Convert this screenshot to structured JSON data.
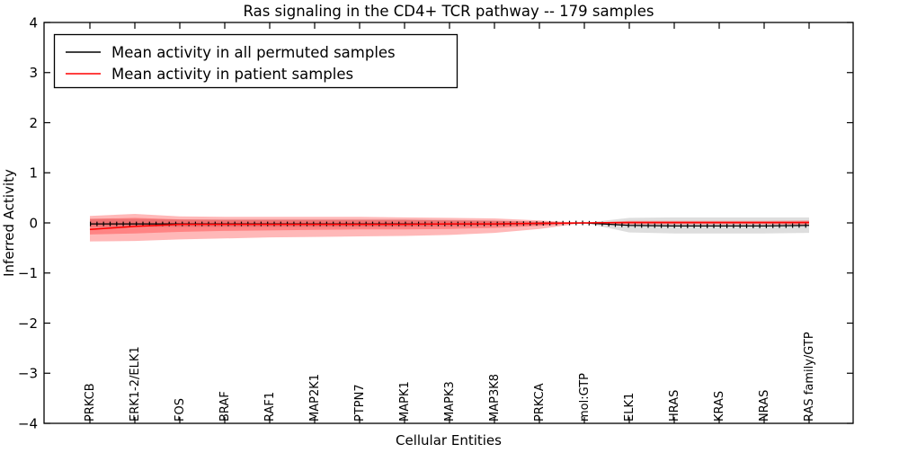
{
  "chart_data": {
    "type": "line",
    "title": "Ras signaling in the CD4+ TCR pathway -- 179 samples",
    "xlabel": "Cellular Entities",
    "ylabel": "Inferred Activity",
    "ylim": [
      -4,
      4
    ],
    "yticks": [
      4,
      3,
      2,
      1,
      0,
      -1,
      -2,
      -3,
      -4
    ],
    "grid": false,
    "legend_position": "upper left",
    "categories": [
      "PRKCB",
      "ERK1-2/ELK1",
      "FOS",
      "BRAF",
      "RAF1",
      "MAP2K1",
      "PTPN7",
      "MAPK1",
      "MAPK3",
      "MAP3K8",
      "PRKCA",
      "mol:GTP",
      "ELK1",
      "HRAS",
      "KRAS",
      "NRAS",
      "RAS family/GTP"
    ],
    "series": [
      {
        "name": "Mean activity in all permuted samples",
        "color": "#000000",
        "line_width": 1.3,
        "tick_markers": true,
        "values": [
          -0.02,
          -0.02,
          -0.02,
          -0.02,
          -0.02,
          -0.02,
          -0.02,
          -0.02,
          -0.02,
          -0.02,
          -0.01,
          0.0,
          -0.05,
          -0.06,
          -0.06,
          -0.06,
          -0.05
        ]
      },
      {
        "name": "Mean activity in patient samples",
        "color": "#ff0000",
        "line_width": 1.5,
        "tick_markers": false,
        "values": [
          -0.13,
          -0.07,
          -0.03,
          -0.03,
          -0.03,
          -0.03,
          -0.03,
          -0.03,
          -0.02,
          -0.02,
          -0.01,
          0.0,
          0.01,
          0.01,
          0.01,
          0.01,
          0.01
        ]
      }
    ],
    "bands": [
      {
        "name": "permuted-samples-spread",
        "color": "rgba(0,0,0,0.13)",
        "upper": [
          0.08,
          0.08,
          0.07,
          0.07,
          0.07,
          0.07,
          0.07,
          0.07,
          0.06,
          0.05,
          0.03,
          0.0,
          0.1,
          0.11,
          0.11,
          0.11,
          0.11
        ],
        "lower": [
          -0.08,
          -0.08,
          -0.08,
          -0.08,
          -0.08,
          -0.08,
          -0.08,
          -0.08,
          -0.07,
          -0.06,
          -0.04,
          0.0,
          -0.19,
          -0.21,
          -0.21,
          -0.21,
          -0.2
        ]
      },
      {
        "name": "patient-samples-spread-outer",
        "color": "rgba(255,0,0,0.28)",
        "upper": [
          0.14,
          0.18,
          0.13,
          0.12,
          0.12,
          0.12,
          0.12,
          0.11,
          0.1,
          0.09,
          0.05,
          0.0,
          0.04,
          0.04,
          0.04,
          0.04,
          0.05
        ],
        "lower": [
          -0.37,
          -0.36,
          -0.33,
          -0.31,
          -0.29,
          -0.28,
          -0.27,
          -0.26,
          -0.24,
          -0.2,
          -0.12,
          0.0,
          -0.03,
          -0.03,
          -0.03,
          -0.03,
          -0.04
        ]
      },
      {
        "name": "patient-samples-spread-inner",
        "color": "rgba(255,0,0,0.28)",
        "upper": [
          0.08,
          0.1,
          0.07,
          0.06,
          0.06,
          0.06,
          0.06,
          0.06,
          0.05,
          0.04,
          0.02,
          0.0,
          0.02,
          0.02,
          0.02,
          0.02,
          0.03
        ],
        "lower": [
          -0.23,
          -0.21,
          -0.18,
          -0.16,
          -0.15,
          -0.14,
          -0.13,
          -0.13,
          -0.12,
          -0.1,
          -0.06,
          0.0,
          -0.02,
          -0.02,
          -0.02,
          -0.02,
          -0.02
        ]
      }
    ]
  }
}
